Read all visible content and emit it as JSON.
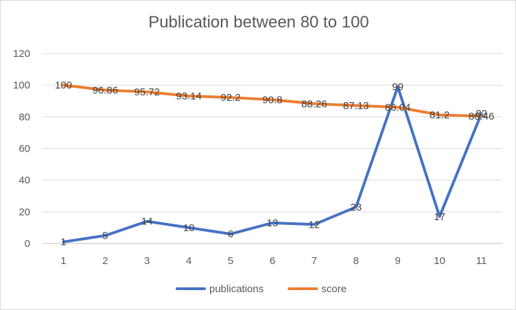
{
  "chart_data": {
    "type": "line",
    "title": "Publication between 80 to 100",
    "xlabel": "",
    "ylabel": "",
    "categories": [
      "1",
      "2",
      "3",
      "4",
      "5",
      "6",
      "7",
      "8",
      "9",
      "10",
      "11"
    ],
    "ylim": [
      0,
      120
    ],
    "yticks": [
      "0",
      "20",
      "40",
      "60",
      "80",
      "100",
      "120"
    ],
    "grid": true,
    "legend": "bottom",
    "series": [
      {
        "name": "publications",
        "color": "#4472c4",
        "values": [
          1,
          5,
          14,
          10,
          6,
          13,
          12,
          23,
          99,
          17,
          82
        ],
        "labels": [
          "1",
          "5",
          "14",
          "10",
          "6",
          "13",
          "12",
          "23",
          "99",
          "17",
          "82"
        ]
      },
      {
        "name": "score",
        "color": "#ed7d31",
        "values": [
          100,
          96.86,
          95.72,
          93.14,
          92.2,
          90.8,
          88.26,
          87.13,
          86.04,
          81.2,
          80.46
        ],
        "labels": [
          "100",
          "96.86",
          "95.72",
          "93.14",
          "92.2",
          "90.8",
          "88.26",
          "87.13",
          "86.04",
          "81.2",
          "80.46"
        ]
      }
    ]
  }
}
